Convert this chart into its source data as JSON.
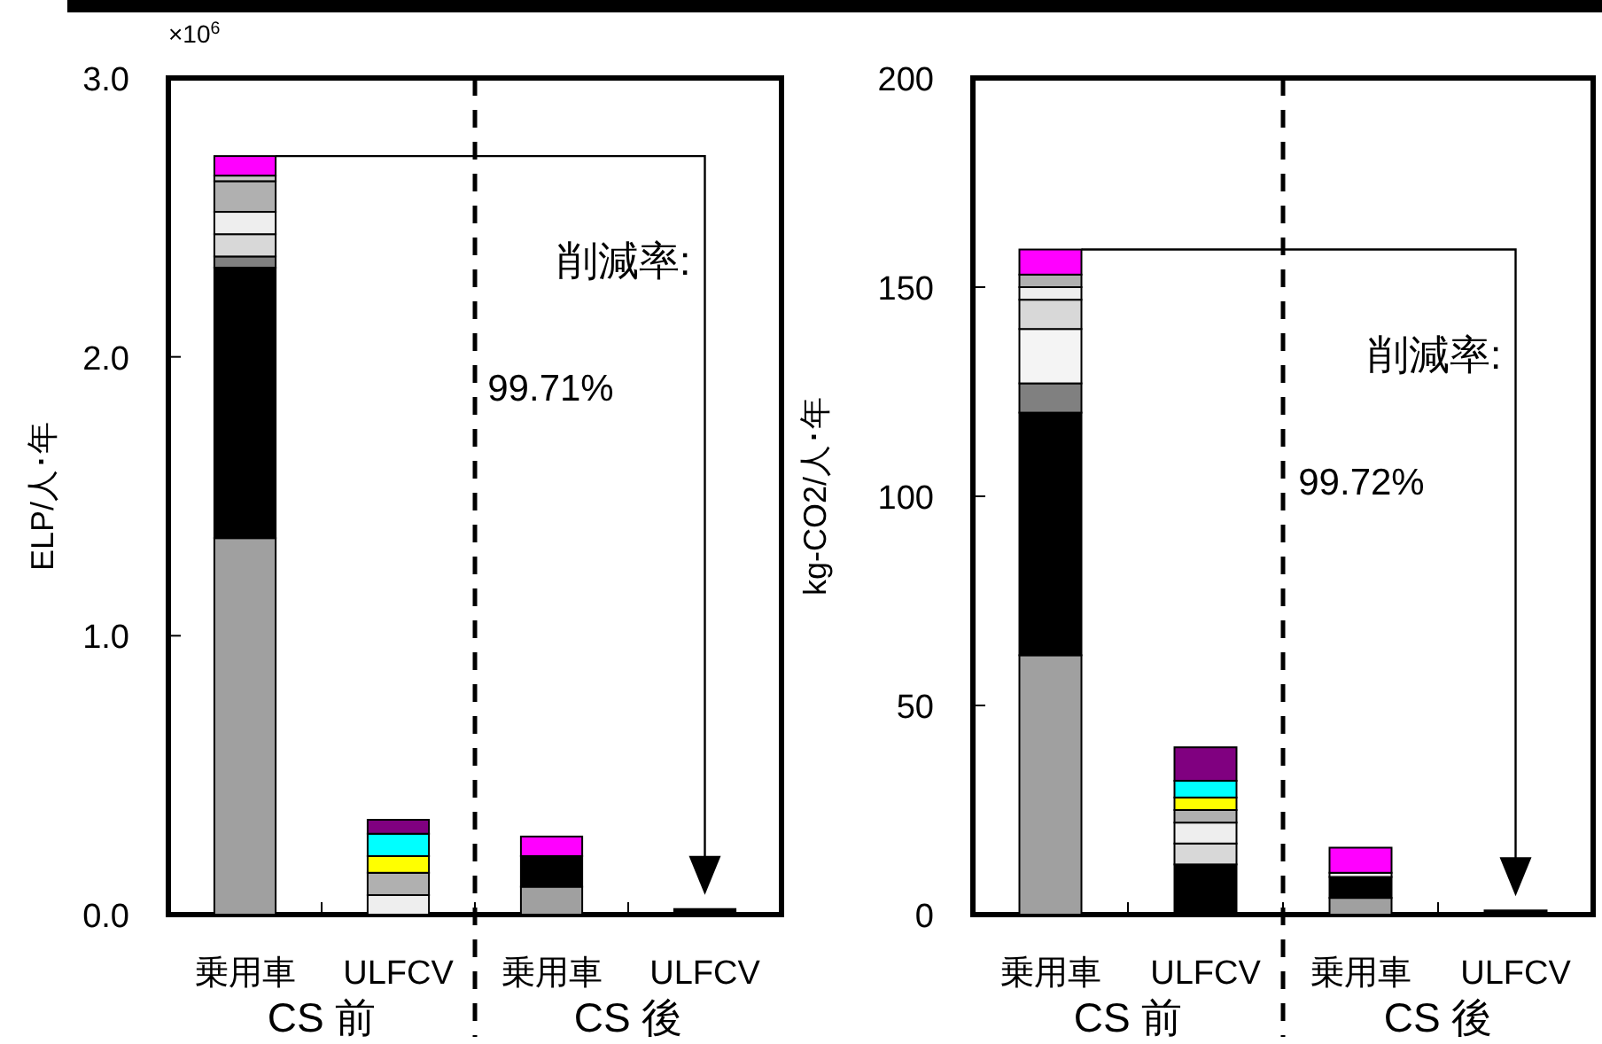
{
  "chart_data": [
    {
      "type": "bar",
      "stacked": true,
      "ylabel": "ELP/人･年",
      "categories": [
        "乗用車",
        "ULFCV",
        "乗用車",
        "ULFCV"
      ],
      "series": [
        {
          "color": "#a0a0a0",
          "values": [
            1.35,
            null,
            0.1,
            null
          ]
        },
        {
          "color": "#000000",
          "values": [
            0.97,
            null,
            0.11,
            0.02
          ]
        },
        {
          "color": "#808080",
          "values": [
            0.04,
            null,
            null,
            null
          ]
        },
        {
          "color": "#d8d8d8",
          "values": [
            0.08,
            null,
            null,
            null
          ]
        },
        {
          "color": "#eeeeee",
          "values": [
            0.08,
            0.07,
            null,
            null
          ]
        },
        {
          "color": "#b0b0b0",
          "values": [
            0.11,
            0.08,
            null,
            null
          ]
        },
        {
          "color": "#c8c8c8",
          "values": [
            0.02,
            null,
            null,
            null
          ]
        },
        {
          "color": "#ffff00",
          "values": [
            null,
            0.06,
            null,
            null
          ]
        },
        {
          "color": "#00ffff",
          "values": [
            null,
            0.08,
            null,
            null
          ]
        },
        {
          "color": "#800080",
          "values": [
            null,
            0.05,
            null,
            null
          ]
        },
        {
          "color": "#ff00ff",
          "values": [
            0.07,
            null,
            0.07,
            null
          ]
        }
      ],
      "ylim": [
        0,
        3.0
      ],
      "yticks": [
        {
          "value": 0,
          "label": "0.0"
        },
        {
          "value": 1,
          "label": "1.0"
        },
        {
          "value": 2,
          "label": "2.0"
        },
        {
          "value": 3,
          "label": "3.0"
        }
      ],
      "annotations": [
        "×10$^{6}$",
        "削減率:",
        "99.71%",
        "CS 前",
        "CS 後"
      ]
    },
    {
      "type": "bar",
      "stacked": true,
      "ylabel": "kg-CO2/人･年",
      "categories": [
        "乗用車",
        "ULFCV",
        "乗用車",
        "ULFCV"
      ],
      "series": [
        {
          "color": "#a0a0a0",
          "values": [
            62,
            null,
            4,
            null
          ]
        },
        {
          "color": "#000000",
          "values": [
            58,
            12,
            5,
            1
          ]
        },
        {
          "color": "#808080",
          "values": [
            7,
            null,
            null,
            null
          ]
        },
        {
          "color": "#f4f4f4",
          "values": [
            13,
            null,
            null,
            null
          ]
        },
        {
          "color": "#d8d8d8",
          "values": [
            7,
            5,
            null,
            null
          ]
        },
        {
          "color": "#eeeeee",
          "values": [
            3,
            5,
            1,
            null
          ]
        },
        {
          "color": "#b0b0b0",
          "values": [
            3,
            3,
            null,
            null
          ]
        },
        {
          "color": "#ffff00",
          "values": [
            null,
            3,
            null,
            null
          ]
        },
        {
          "color": "#00ffff",
          "values": [
            null,
            4,
            null,
            null
          ]
        },
        {
          "color": "#800080",
          "values": [
            null,
            8,
            null,
            null
          ]
        },
        {
          "color": "#ff00ff",
          "values": [
            6,
            null,
            6,
            null
          ]
        }
      ],
      "ylim": [
        0,
        200
      ],
      "yticks": [
        0,
        50,
        100,
        150,
        200
      ],
      "annotations": [
        "削減率:",
        "99.72%",
        "CS 前",
        "CS 後"
      ]
    }
  ]
}
